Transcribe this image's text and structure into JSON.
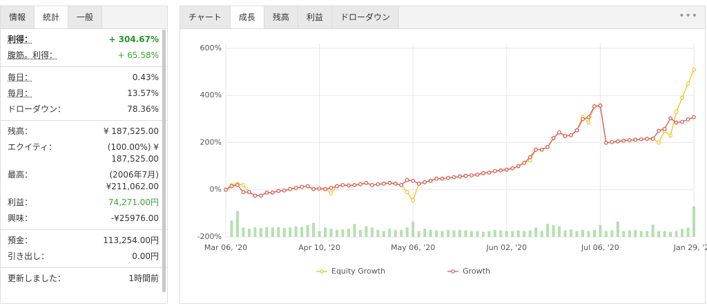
{
  "left_panel": {
    "tabs": [
      "情報",
      "統計",
      "一般"
    ],
    "active_tab": 1,
    "groups": [
      [
        {
          "label": "利得：",
          "value": [
            "+ 304.67%"
          ],
          "style": "strong"
        },
        {
          "label": "腹筋。利得：",
          "value": [
            "+ 65.58%"
          ],
          "style": "green"
        }
      ],
      [
        {
          "label": "毎日：",
          "value": [
            "0.43%"
          ]
        },
        {
          "label": "毎月：",
          "value": [
            "13.57%"
          ]
        },
        {
          "label": "ドローダウン：",
          "value": [
            "78.36%"
          ]
        }
      ],
      [
        {
          "label": "残高：",
          "value": [
            "¥ 187,525.00"
          ]
        },
        {
          "label": "エクイティ：",
          "value": [
            "(100.00%) ¥",
            "187,525.00"
          ]
        },
        {
          "label": "最高：",
          "value": [
            "(2006年7月)",
            "¥211,062.00"
          ]
        },
        {
          "label": "利益：",
          "value": [
            "74,271.00円"
          ],
          "style": "green"
        },
        {
          "label": "興味：",
          "value": [
            "-¥25976.00"
          ]
        }
      ],
      [
        {
          "label": "預金：",
          "value": [
            "113,254.00円"
          ]
        },
        {
          "label": "引き出し：",
          "value": [
            "0.00円"
          ]
        }
      ],
      [
        {
          "label": "更新しました：",
          "value": [
            "1時間前"
          ]
        }
      ]
    ]
  },
  "right_tabs": {
    "tabs": [
      "チャート",
      "成長",
      "残高",
      "利益",
      "ドローダウン"
    ],
    "active_tab": 1,
    "more": "•••"
  },
  "chart_data": {
    "type": "line",
    "categories": [
      "Mar 06, '20",
      null,
      null,
      null,
      null,
      null,
      null,
      null,
      null,
      null,
      null,
      null,
      null,
      null,
      null,
      null,
      "Apr 10, '20",
      null,
      null,
      null,
      null,
      null,
      null,
      null,
      null,
      null,
      null,
      null,
      null,
      null,
      null,
      null,
      "May 06, '20",
      null,
      null,
      null,
      null,
      null,
      null,
      null,
      null,
      null,
      null,
      null,
      null,
      null,
      null,
      null,
      "Jun 02, '20",
      null,
      null,
      null,
      null,
      null,
      null,
      null,
      null,
      null,
      null,
      null,
      null,
      null,
      null,
      null,
      "Jul 06, '20",
      null,
      null,
      null,
      null,
      null,
      null,
      null,
      null,
      null,
      null,
      null,
      null,
      null,
      null,
      null,
      "Jan 29, '21"
    ],
    "series": [
      {
        "name": "Equity Growth",
        "color": "#f0c419",
        "values": [
          0,
          20,
          25,
          20,
          -10,
          -25,
          -25,
          -12,
          -12,
          -5,
          -3,
          3,
          8,
          12,
          15,
          3,
          5,
          3,
          -15,
          15,
          20,
          18,
          20,
          23,
          29,
          20,
          23,
          26,
          29,
          26,
          20,
          -10,
          -45,
          26,
          32,
          38,
          47,
          47,
          50,
          53,
          56,
          59,
          61,
          64,
          70,
          73,
          79,
          82,
          85,
          91,
          100,
          114,
          125,
          170,
          170,
          181,
          219,
          243,
          228,
          231,
          252,
          310,
          285,
          354,
          357,
          199,
          202,
          205,
          208,
          210,
          212,
          214,
          216,
          216,
          200,
          250,
          230,
          330,
          390,
          450,
          510
        ]
      },
      {
        "name": "Growth",
        "color": "#d9534f",
        "values": [
          0,
          15,
          20,
          -10,
          -10,
          -25,
          -25,
          -12,
          -12,
          -5,
          -3,
          3,
          8,
          12,
          15,
          3,
          5,
          3,
          8,
          15,
          20,
          18,
          20,
          23,
          29,
          20,
          23,
          26,
          29,
          26,
          20,
          41,
          38,
          26,
          32,
          38,
          47,
          47,
          50,
          53,
          56,
          59,
          61,
          64,
          70,
          73,
          79,
          82,
          85,
          91,
          100,
          114,
          138,
          170,
          170,
          181,
          219,
          243,
          228,
          231,
          252,
          299,
          307,
          354,
          357,
          199,
          202,
          205,
          208,
          210,
          212,
          214,
          216,
          216,
          250,
          258,
          303,
          285,
          288,
          298,
          308
        ]
      }
    ],
    "bars": {
      "color": "#b5dfb0",
      "values": [
        -200,
        -130,
        -90,
        -160,
        -165,
        -160,
        -162,
        -158,
        -160,
        -158,
        -162,
        -160,
        -155,
        -158,
        -150,
        -140,
        -175,
        -160,
        -165,
        -170,
        -168,
        -165,
        -145,
        -170,
        -155,
        -160,
        -170,
        -175,
        -165,
        -170,
        -170,
        -160,
        -135,
        -175,
        -165,
        -170,
        -172,
        -175,
        -170,
        -172,
        -170,
        -172,
        -175,
        -175,
        -178,
        -175,
        -170,
        -172,
        -175,
        -175,
        -172,
        -175,
        -172,
        -160,
        -175,
        -145,
        -150,
        -155,
        -172,
        -168,
        -175,
        -170,
        -175,
        -170,
        -150,
        -175,
        -172,
        -135,
        -175,
        -172,
        -170,
        -175,
        -175,
        -148,
        -175,
        -175,
        -178,
        -175,
        -165,
        -160,
        -70
      ]
    },
    "ylim": [
      -200,
      620
    ],
    "yticks": [
      {
        "value": -200,
        "label": "-200%"
      },
      {
        "value": 0,
        "label": "0%"
      },
      {
        "value": 200,
        "label": "200%"
      },
      {
        "value": 400,
        "label": "400%"
      },
      {
        "value": 600,
        "label": "600%"
      }
    ],
    "grid": true,
    "legend": "bottom"
  }
}
